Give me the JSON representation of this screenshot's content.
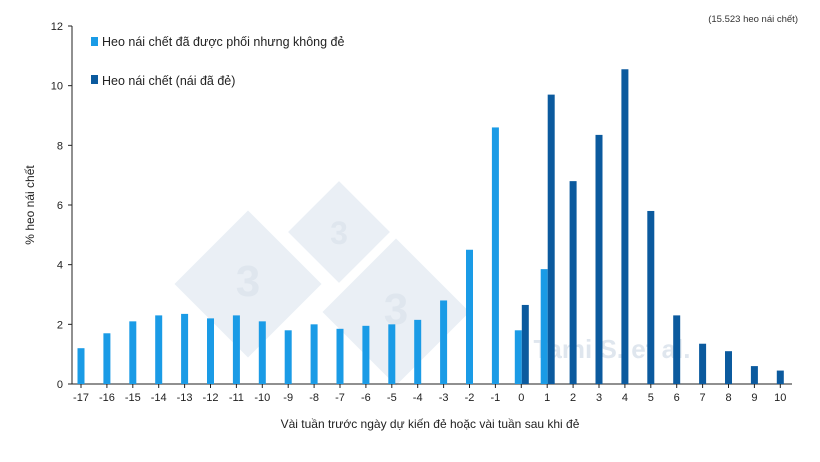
{
  "chart_data": {
    "type": "bar",
    "title": "",
    "note": "(15.523 heo nái chết)",
    "xlabel": "Vài tuần trước ngày dự kiến đẻ hoặc vài tuần sau khi đẻ",
    "ylabel": "% heo nái chết",
    "ylim": [
      0,
      12
    ],
    "yticks": [
      "0",
      "2",
      "4",
      "6",
      "8",
      "10",
      "12"
    ],
    "categories": [
      "-17",
      "-16",
      "-15",
      "-14",
      "-13",
      "-12",
      "-11",
      "-10",
      "-9",
      "-8",
      "-7",
      "-6",
      "-5",
      "-4",
      "-3",
      "-2",
      "-1",
      "0",
      "1",
      "2",
      "3",
      "4",
      "5",
      "6",
      "7",
      "8",
      "9",
      "10"
    ],
    "legend_position": "top-left",
    "series": [
      {
        "name": "Heo nái chết đã được phối nhưng không đẻ",
        "color": "#1a9be6",
        "values": [
          1.2,
          1.7,
          2.1,
          2.3,
          2.35,
          2.2,
          2.3,
          2.1,
          1.8,
          2.0,
          1.85,
          1.95,
          2.0,
          2.15,
          2.8,
          4.5,
          8.6,
          1.8,
          3.85,
          null,
          null,
          null,
          null,
          null,
          null,
          null,
          null,
          null
        ]
      },
      {
        "name": "Heo nái chết (nái đã đẻ)",
        "color": "#0b5a9e",
        "values": [
          null,
          null,
          null,
          null,
          null,
          null,
          null,
          null,
          null,
          null,
          null,
          null,
          null,
          null,
          null,
          null,
          null,
          2.65,
          9.7,
          6.8,
          8.35,
          10.55,
          5.8,
          2.3,
          1.35,
          1.1,
          0.6,
          0.45
        ]
      }
    ]
  },
  "watermark": {
    "digits": [
      "3",
      "3",
      "3"
    ],
    "text": "Tami S. et al.",
    "color": "#dfe6ee"
  }
}
